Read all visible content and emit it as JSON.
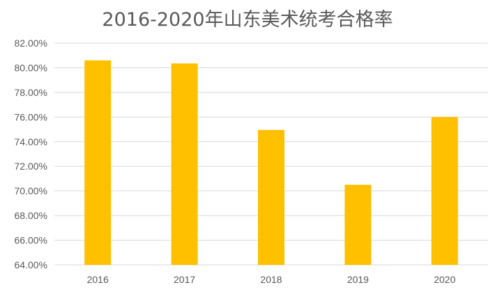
{
  "chart_data": {
    "type": "bar",
    "title": "2016-2020年山东美术统考合格率",
    "categories": [
      "2016",
      "2017",
      "2018",
      "2019",
      "2020"
    ],
    "values": [
      80.6,
      80.35,
      74.95,
      70.5,
      76.0
    ],
    "ylim": [
      64,
      82
    ],
    "yticks": [
      "64.00%",
      "66.00%",
      "68.00%",
      "70.00%",
      "72.00%",
      "74.00%",
      "76.00%",
      "78.00%",
      "80.00%",
      "82.00%"
    ],
    "xlabel": "",
    "ylabel": "",
    "grid": true,
    "bar_color": "#FFC000",
    "grid_color": "#D9D9D9"
  }
}
